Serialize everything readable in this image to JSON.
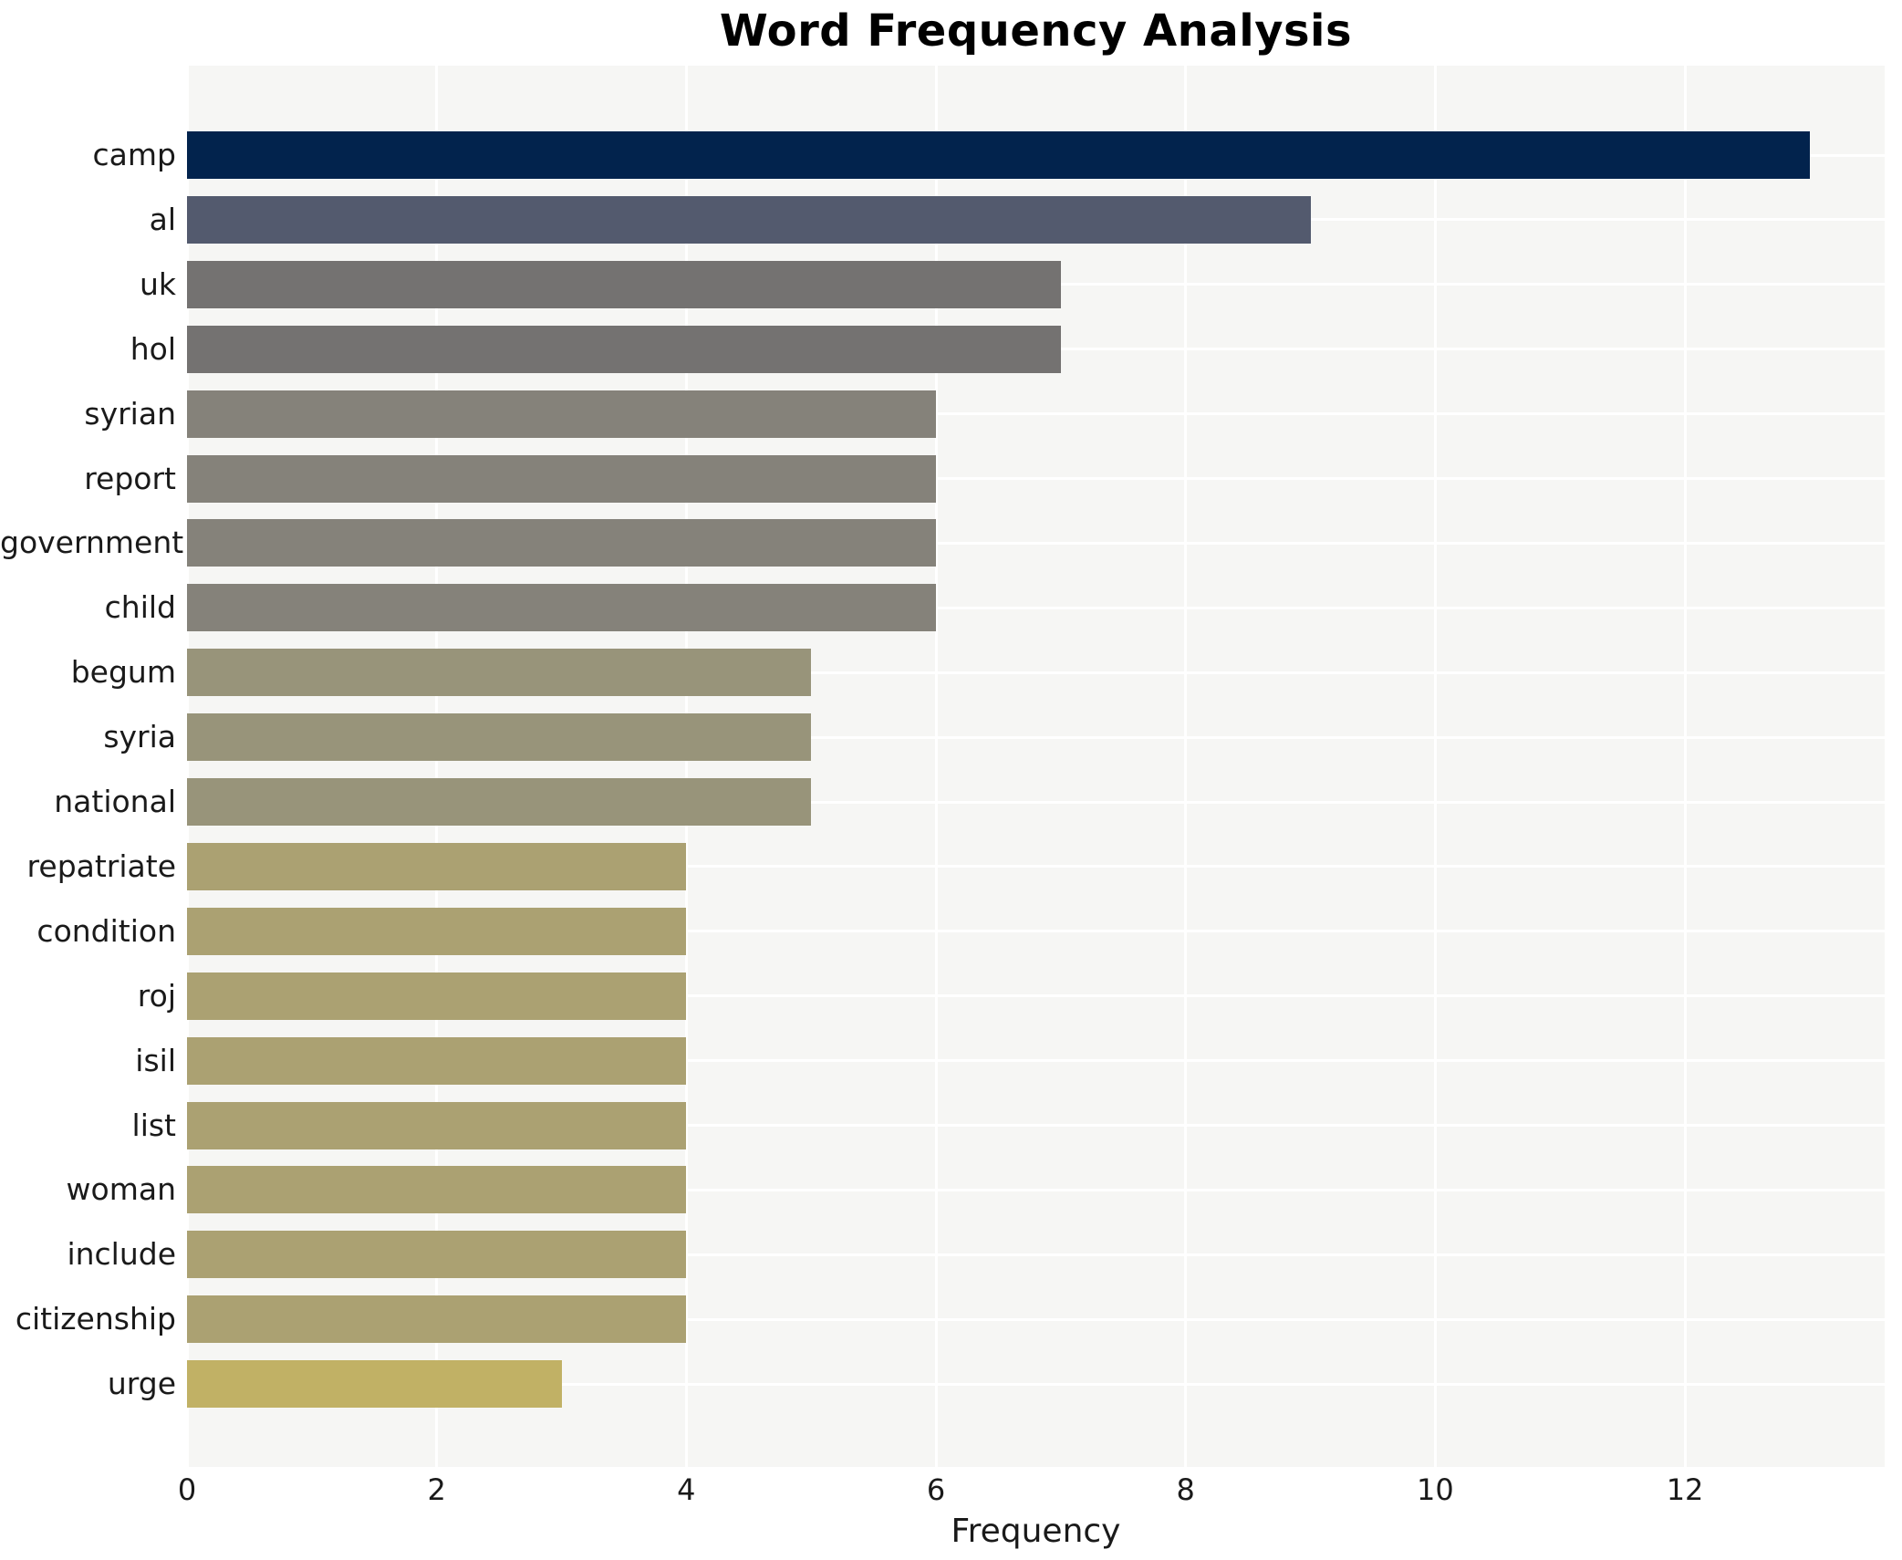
{
  "title": "Word Frequency Analysis",
  "chart_data": {
    "type": "bar",
    "orientation": "horizontal",
    "title": "Word Frequency Analysis",
    "xlabel": "Frequency",
    "ylabel": "",
    "categories": [
      "camp",
      "al",
      "uk",
      "hol",
      "syrian",
      "report",
      "government",
      "child",
      "begum",
      "syria",
      "national",
      "repatriate",
      "condition",
      "roj",
      "isil",
      "list",
      "woman",
      "include",
      "citizenship",
      "urge"
    ],
    "values": [
      13,
      9,
      7,
      7,
      6,
      6,
      6,
      6,
      5,
      5,
      5,
      4,
      4,
      4,
      4,
      4,
      4,
      4,
      4,
      3
    ],
    "bar_colors": [
      "#02234d",
      "#535a6e",
      "#747271",
      "#747271",
      "#85827a",
      "#85827a",
      "#85827a",
      "#85827a",
      "#98947a",
      "#98947a",
      "#98947a",
      "#aba172",
      "#aba172",
      "#aba172",
      "#aba172",
      "#aba172",
      "#aba172",
      "#aba172",
      "#aba172",
      "#c1b165"
    ],
    "xticks": [
      0,
      2,
      4,
      6,
      8,
      10,
      12
    ],
    "xlim": [
      0,
      13.6
    ],
    "legend_position": "none",
    "grid": {
      "vertical_at_xticks": true,
      "horizontal_at_category_centers": true,
      "color": "#ffffff"
    },
    "panel_background": "#f6f6f4",
    "text_color": "#1a1a1a",
    "title_color": "#000000"
  }
}
